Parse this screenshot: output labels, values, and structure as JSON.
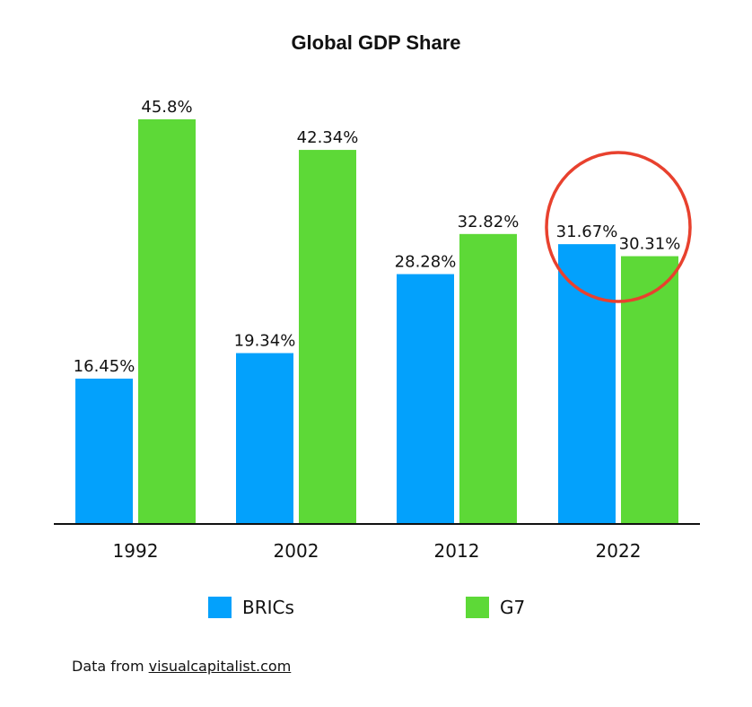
{
  "chart_data": {
    "type": "bar",
    "title": "Global GDP Share",
    "categories": [
      "1992",
      "2002",
      "2012",
      "2022"
    ],
    "series": [
      {
        "name": "BRICs",
        "color": "#03a1fc",
        "values": [
          16.45,
          19.34,
          28.28,
          31.67
        ],
        "labels": [
          "16.45%",
          "19.34%",
          "28.28%",
          "31.67%"
        ]
      },
      {
        "name": "G7",
        "color": "#5dd937",
        "values": [
          45.8,
          42.34,
          32.82,
          30.31
        ],
        "labels": [
          "45.8%",
          "42.34%",
          "32.82%",
          "30.31%"
        ]
      }
    ],
    "ylim": [
      0,
      45.8
    ],
    "grid": false,
    "legend_position": "bottom",
    "annotation": {
      "type": "circle",
      "category": "2022",
      "color": "#e8412e"
    }
  },
  "source": {
    "prefix": "Data from ",
    "link_text": "visualcapitalist.com"
  }
}
